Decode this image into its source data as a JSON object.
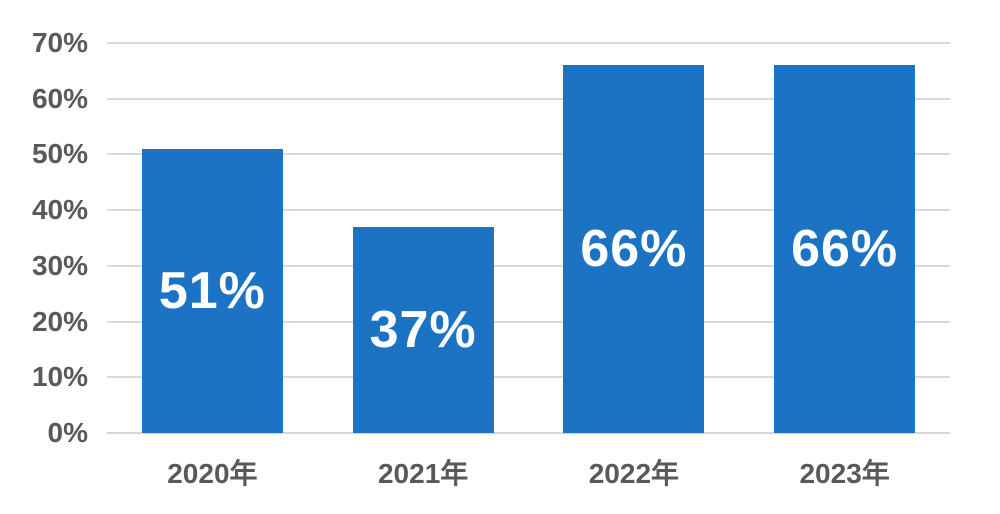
{
  "chart_data": {
    "type": "bar",
    "title": "",
    "categories": [
      "2020年",
      "2021年",
      "2022年",
      "2023年"
    ],
    "values": [
      51,
      37,
      66,
      66
    ],
    "bar_labels": [
      "51%",
      "37%",
      "66%",
      "66%"
    ],
    "yticks": [
      0,
      10,
      20,
      30,
      40,
      50,
      60,
      70
    ],
    "ytick_labels": [
      "0%",
      "10%",
      "20%",
      "30%",
      "40%",
      "50%",
      "60%",
      "70%"
    ],
    "ylim": [
      0,
      70
    ],
    "xlabel": "",
    "ylabel": "",
    "grid": true,
    "legend": false,
    "colors": {
      "bar": "#1c73c4",
      "bar_label_text": "#ffffff",
      "gridline": "#d9d9d9",
      "axis_line": "#d6d6d6",
      "tick_text": "#595959",
      "background": "#ffffff"
    }
  }
}
